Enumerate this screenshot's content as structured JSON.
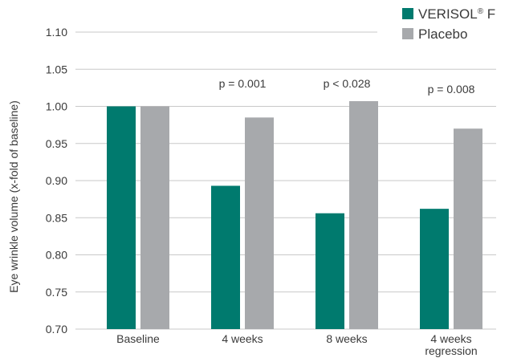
{
  "chart_data": {
    "type": "bar",
    "title": "",
    "xlabel": "",
    "ylabel": "Eye wrinkle volume (x-fold of baseline)",
    "ylim": [
      0.7,
      1.1
    ],
    "yticks": [
      "0.70",
      "0.75",
      "0.80",
      "0.85",
      "0.90",
      "0.95",
      "1.00",
      "1.05",
      "1.10"
    ],
    "grid": true,
    "legend_position": "top-right",
    "categories": [
      [
        "Baseline"
      ],
      [
        "4 weeks"
      ],
      [
        "8 weeks"
      ],
      [
        "4 weeks",
        "regression"
      ]
    ],
    "series": [
      {
        "name": "VERISOL",
        "name_sup": "®",
        "name_suffix": " F",
        "color": "#007a6e",
        "values": [
          1.0,
          0.893,
          0.856,
          0.862
        ]
      },
      {
        "name": "Placebo",
        "color": "#a7a9ac",
        "values": [
          1.0,
          0.985,
          1.007,
          0.97
        ]
      }
    ],
    "annotations": [
      {
        "category_index": 1,
        "text": "p = 0.001"
      },
      {
        "category_index": 2,
        "text": "p < 0.028"
      },
      {
        "category_index": 3,
        "text": "p = 0.008"
      }
    ]
  }
}
